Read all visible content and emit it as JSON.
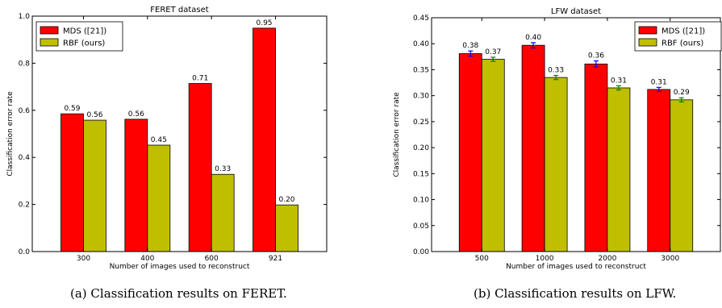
{
  "chart_data": [
    {
      "type": "bar",
      "title": "FERET dataset",
      "xlabel": "Number of images used to reconstruct",
      "ylabel": "Classification error rate",
      "categories": [
        "300",
        "400",
        "600",
        "921"
      ],
      "ylim": [
        0,
        1.0
      ],
      "yticks": [
        "0.0",
        "0.2",
        "0.4",
        "0.6",
        "0.8",
        "1.0"
      ],
      "ytick_values": [
        0,
        0.2,
        0.4,
        0.6,
        0.8,
        1.0
      ],
      "legend_position": "top-left",
      "series": [
        {
          "name": "MDS ([21])",
          "color": "#ff0000",
          "values": [
            0.585,
            0.562,
            0.714,
            0.949
          ],
          "labels": [
            "0.59",
            "0.56",
            "0.71",
            "0.95"
          ]
        },
        {
          "name": "RBF (ours)",
          "color": "#bfbf00",
          "values": [
            0.558,
            0.452,
            0.328,
            0.198
          ],
          "labels": [
            "0.56",
            "0.45",
            "0.33",
            "0.20"
          ]
        }
      ],
      "caption": "(a)  Classification results on FERET."
    },
    {
      "type": "bar",
      "title": "LFW dataset",
      "xlabel": "Number of images used to reconstruct",
      "ylabel": "Classification error rate",
      "categories": [
        "500",
        "1000",
        "2000",
        "3000"
      ],
      "ylim": [
        0,
        0.45
      ],
      "yticks": [
        "0.00",
        "0.05",
        "0.10",
        "0.15",
        "0.20",
        "0.25",
        "0.30",
        "0.35",
        "0.40",
        "0.45"
      ],
      "ytick_values": [
        0,
        0.05,
        0.1,
        0.15,
        0.2,
        0.25,
        0.3,
        0.35,
        0.4,
        0.45
      ],
      "legend_position": "top-right",
      "error_bars": true,
      "series": [
        {
          "name": "MDS ([21])",
          "color": "#ff0000",
          "err_color": "#0000ff",
          "values": [
            0.381,
            0.397,
            0.361,
            0.312
          ],
          "errors": [
            0.005,
            0.005,
            0.006,
            0.004
          ],
          "labels": [
            "0.38",
            "0.40",
            "0.36",
            "0.31"
          ]
        },
        {
          "name": "RBF (ours)",
          "color": "#bfbf00",
          "err_color": "#008000",
          "values": [
            0.37,
            0.335,
            0.315,
            0.292
          ],
          "errors": [
            0.004,
            0.004,
            0.004,
            0.004
          ],
          "labels": [
            "0.37",
            "0.33",
            "0.31",
            "0.29"
          ]
        }
      ],
      "caption": "(b)  Classification results on LFW."
    }
  ]
}
